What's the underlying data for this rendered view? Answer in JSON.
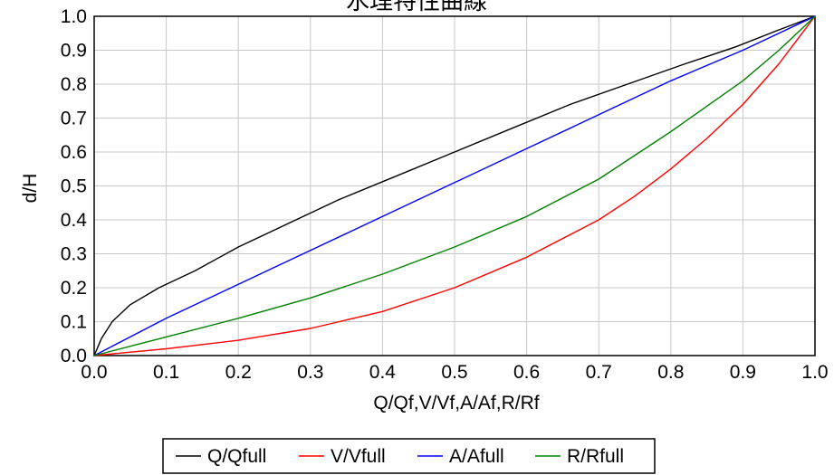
{
  "chart_data": {
    "type": "line",
    "title": "水理特性曲線",
    "xlabel": "Q/Qf,V/Vf,A/Af,R/Rf",
    "ylabel": "d/H",
    "xlim": [
      0.0,
      1.0
    ],
    "ylim": [
      0.0,
      1.0
    ],
    "xticks": [
      "0.0",
      "0.1",
      "0.2",
      "0.3",
      "0.4",
      "0.5",
      "0.6",
      "0.7",
      "0.8",
      "0.9",
      "1.0"
    ],
    "yticks": [
      "0.0",
      "0.1",
      "0.2",
      "0.3",
      "0.4",
      "0.5",
      "0.6",
      "0.7",
      "0.8",
      "0.9",
      "1.0"
    ],
    "grid": true,
    "legend_position": "bottom",
    "series": [
      {
        "name": "Q/Qfull",
        "color": "#000000",
        "points": [
          [
            0,
            0
          ],
          [
            0.01,
            0.05
          ],
          [
            0.025,
            0.1
          ],
          [
            0.05,
            0.15
          ],
          [
            0.09,
            0.2
          ],
          [
            0.14,
            0.25
          ],
          [
            0.2,
            0.32
          ],
          [
            0.27,
            0.39
          ],
          [
            0.34,
            0.46
          ],
          [
            0.42,
            0.53
          ],
          [
            0.5,
            0.6
          ],
          [
            0.58,
            0.67
          ],
          [
            0.66,
            0.74
          ],
          [
            0.74,
            0.8
          ],
          [
            0.82,
            0.86
          ],
          [
            0.89,
            0.91
          ],
          [
            0.95,
            0.96
          ],
          [
            1.0,
            1.0
          ]
        ]
      },
      {
        "name": "V/Vfull",
        "color": "#ff0000",
        "points": [
          [
            0,
            0
          ],
          [
            0.1,
            0.02
          ],
          [
            0.2,
            0.045
          ],
          [
            0.3,
            0.08
          ],
          [
            0.4,
            0.13
          ],
          [
            0.5,
            0.2
          ],
          [
            0.6,
            0.29
          ],
          [
            0.7,
            0.4
          ],
          [
            0.75,
            0.47
          ],
          [
            0.8,
            0.55
          ],
          [
            0.85,
            0.64
          ],
          [
            0.9,
            0.74
          ],
          [
            0.95,
            0.86
          ],
          [
            1.0,
            1.0
          ]
        ]
      },
      {
        "name": "A/Afull",
        "color": "#0000ff",
        "points": [
          [
            0,
            0
          ],
          [
            0.1,
            0.11
          ],
          [
            0.2,
            0.21
          ],
          [
            0.3,
            0.31
          ],
          [
            0.4,
            0.41
          ],
          [
            0.5,
            0.51
          ],
          [
            0.6,
            0.61
          ],
          [
            0.7,
            0.71
          ],
          [
            0.8,
            0.81
          ],
          [
            0.9,
            0.9
          ],
          [
            1.0,
            1.0
          ]
        ]
      },
      {
        "name": "R/Rfull",
        "color": "#008000",
        "points": [
          [
            0,
            0
          ],
          [
            0.1,
            0.055
          ],
          [
            0.2,
            0.11
          ],
          [
            0.3,
            0.17
          ],
          [
            0.4,
            0.24
          ],
          [
            0.5,
            0.32
          ],
          [
            0.6,
            0.41
          ],
          [
            0.7,
            0.52
          ],
          [
            0.8,
            0.66
          ],
          [
            0.9,
            0.81
          ],
          [
            0.95,
            0.9
          ],
          [
            1.0,
            1.0
          ]
        ]
      }
    ]
  }
}
